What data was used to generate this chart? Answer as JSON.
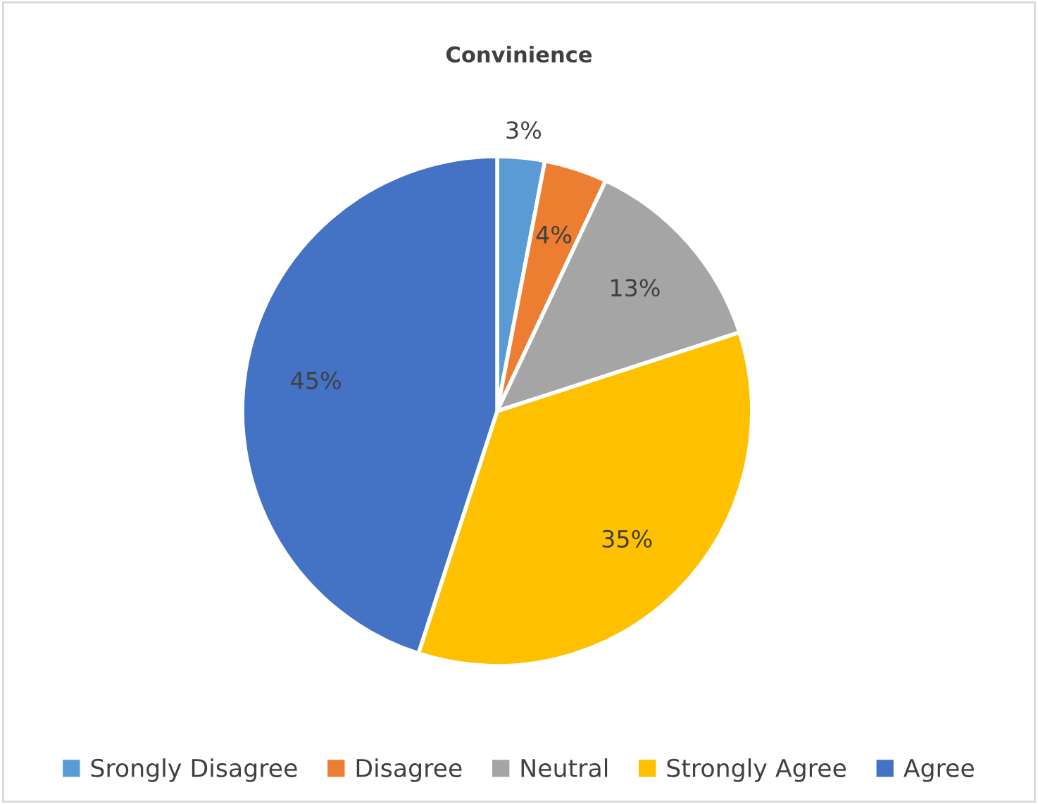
{
  "chart_data": {
    "type": "pie",
    "title": "Convinience",
    "categories": [
      "Srongly Disagree",
      "Disagree",
      "Neutral",
      "Strongly Agree",
      "Agree"
    ],
    "values": [
      3,
      4,
      13,
      35,
      45
    ],
    "colors": [
      "#5b9bd5",
      "#ed7d31",
      "#a5a5a5",
      "#ffc000",
      "#4472c4"
    ],
    "value_labels": [
      "3%",
      "4%",
      "13%",
      "35%",
      "45%"
    ],
    "legend": "bottom"
  }
}
